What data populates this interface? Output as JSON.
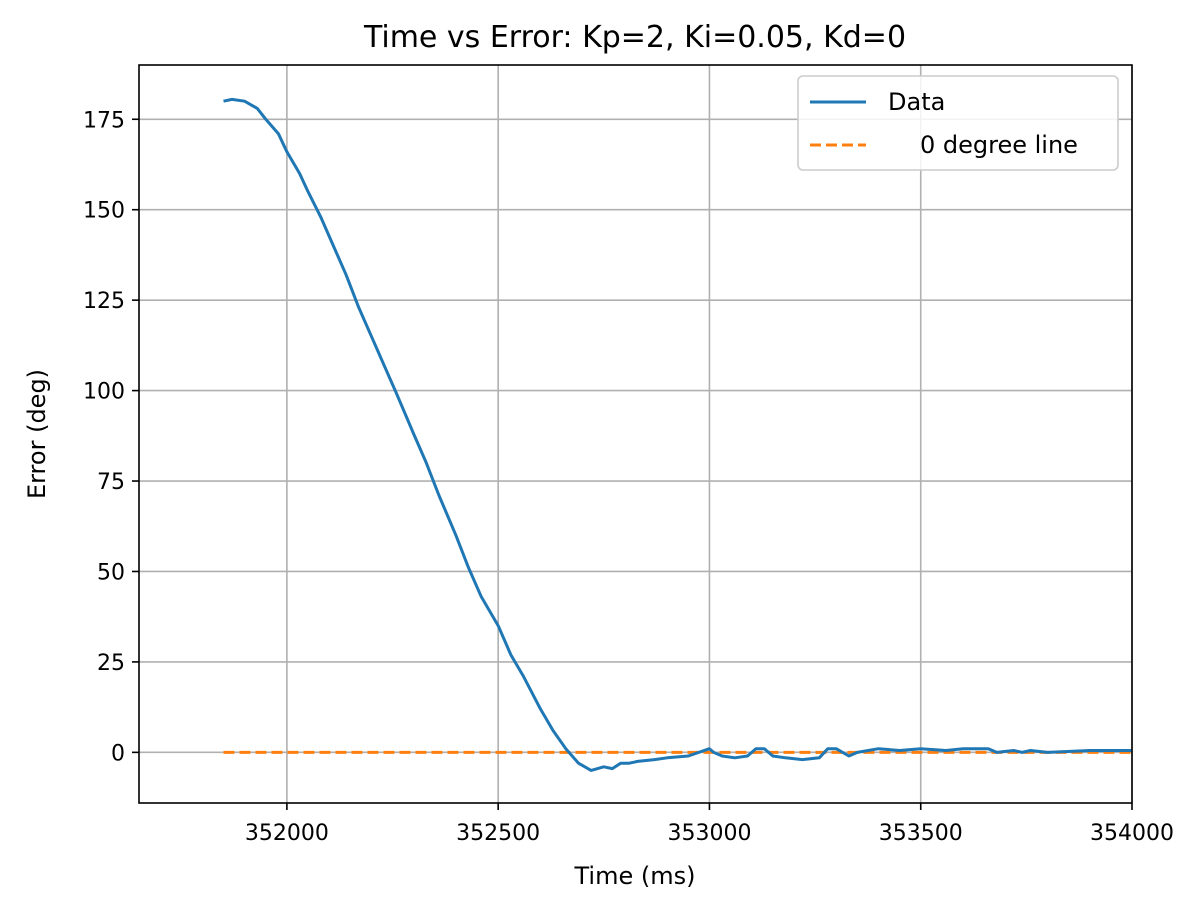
{
  "chart_data": {
    "type": "line",
    "title": "Time vs Error: Kp=2, Ki=0.05, Kd=0",
    "xlabel": "Time (ms)",
    "ylabel": "Error (deg)",
    "xlim": [
      351650,
      354000
    ],
    "ylim": [
      -14,
      190
    ],
    "xticks": [
      352000,
      352500,
      353000,
      353500,
      354000
    ],
    "xtick_labels": [
      "352000",
      "352500",
      "353000",
      "353500",
      "354000"
    ],
    "yticks": [
      0,
      25,
      50,
      75,
      100,
      125,
      150,
      175
    ],
    "ytick_labels": [
      "0",
      "25",
      "50",
      "75",
      "100",
      "125",
      "150",
      "175"
    ],
    "grid": true,
    "legend_position": "top-right",
    "series": [
      {
        "name": "Data",
        "color": "#1f77b4",
        "style": "solid",
        "x": [
          351850,
          351870,
          351900,
          351930,
          351950,
          351980,
          352000,
          352030,
          352050,
          352080,
          352110,
          352140,
          352170,
          352200,
          352230,
          352260,
          352300,
          352330,
          352360,
          352400,
          352430,
          352460,
          352500,
          352530,
          352560,
          352600,
          352630,
          352660,
          352690,
          352720,
          352750,
          352770,
          352790,
          352810,
          352830,
          352870,
          352900,
          352950,
          353000,
          353010,
          353030,
          353060,
          353090,
          353110,
          353130,
          353150,
          353180,
          353220,
          353260,
          353280,
          353300,
          353330,
          353350,
          353400,
          353450,
          353500,
          353560,
          353600,
          353660,
          353680,
          353720,
          353740,
          353760,
          353800,
          353900,
          354000
        ],
        "y": [
          180,
          180.5,
          180,
          178,
          175,
          171,
          166,
          160,
          155,
          148,
          140,
          132,
          123,
          115,
          107,
          99,
          88,
          80,
          71,
          60,
          51,
          43,
          35,
          27,
          21,
          12,
          6,
          1,
          -3,
          -5,
          -4,
          -4.5,
          -3,
          -3,
          -2.5,
          -2,
          -1.5,
          -1,
          1,
          0,
          -1,
          -1.5,
          -1,
          1,
          1,
          -1,
          -1.5,
          -2,
          -1.5,
          1,
          1,
          -1,
          0,
          1,
          0.5,
          1,
          0.5,
          1,
          1,
          0,
          0.5,
          0,
          0.5,
          0,
          0.5,
          0.5
        ]
      },
      {
        "name": "0 degree line",
        "color": "#ff7f0e",
        "style": "dashed",
        "x": [
          351850,
          354000
        ],
        "y": [
          0,
          0
        ]
      }
    ]
  }
}
